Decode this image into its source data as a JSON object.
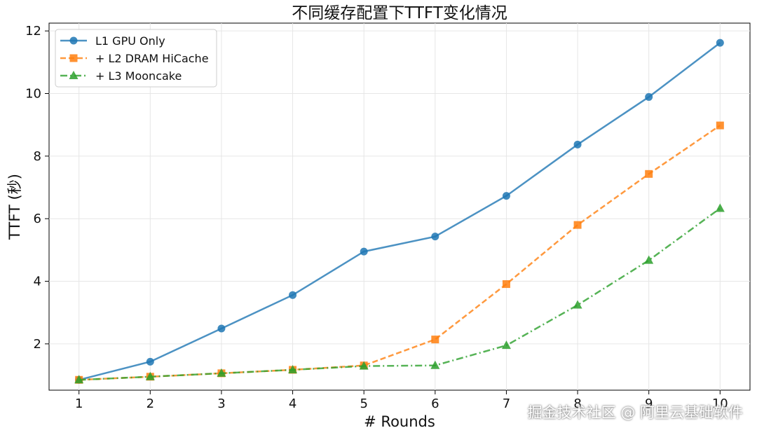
{
  "chart_data": {
    "type": "line",
    "title": "不同缓存配置下TTFT变化情况",
    "xlabel": "# Rounds",
    "ylabel": "TTFT (秒)",
    "x": [
      1,
      2,
      3,
      4,
      5,
      6,
      7,
      8,
      9,
      10
    ],
    "xlim": [
      0.58,
      10.42
    ],
    "ylim": [
      0.52,
      12.25
    ],
    "yticks": [
      2,
      4,
      6,
      8,
      10,
      12
    ],
    "grid": true,
    "legend_position": "top-left",
    "series": [
      {
        "name": "L1 GPU Only",
        "color": "#1f77b4",
        "marker": "circle",
        "linestyle": "solid",
        "values": [
          0.85,
          1.43,
          2.49,
          3.56,
          4.95,
          5.43,
          6.73,
          8.37,
          9.89,
          11.62
        ]
      },
      {
        "name": "+ L2 DRAM HiCache",
        "color": "#ff7f0e",
        "marker": "square",
        "linestyle": "dashed",
        "values": [
          0.85,
          0.95,
          1.06,
          1.17,
          1.31,
          2.14,
          3.91,
          5.8,
          7.43,
          8.98
        ]
      },
      {
        "name": "+ L3 Mooncake",
        "color": "#2ca02c",
        "marker": "triangle",
        "linestyle": "dashdot",
        "values": [
          0.85,
          0.95,
          1.06,
          1.17,
          1.29,
          1.31,
          1.95,
          3.24,
          4.67,
          6.33
        ]
      }
    ]
  },
  "watermark": "掘金技术社区 @ 阿里云基础软件"
}
